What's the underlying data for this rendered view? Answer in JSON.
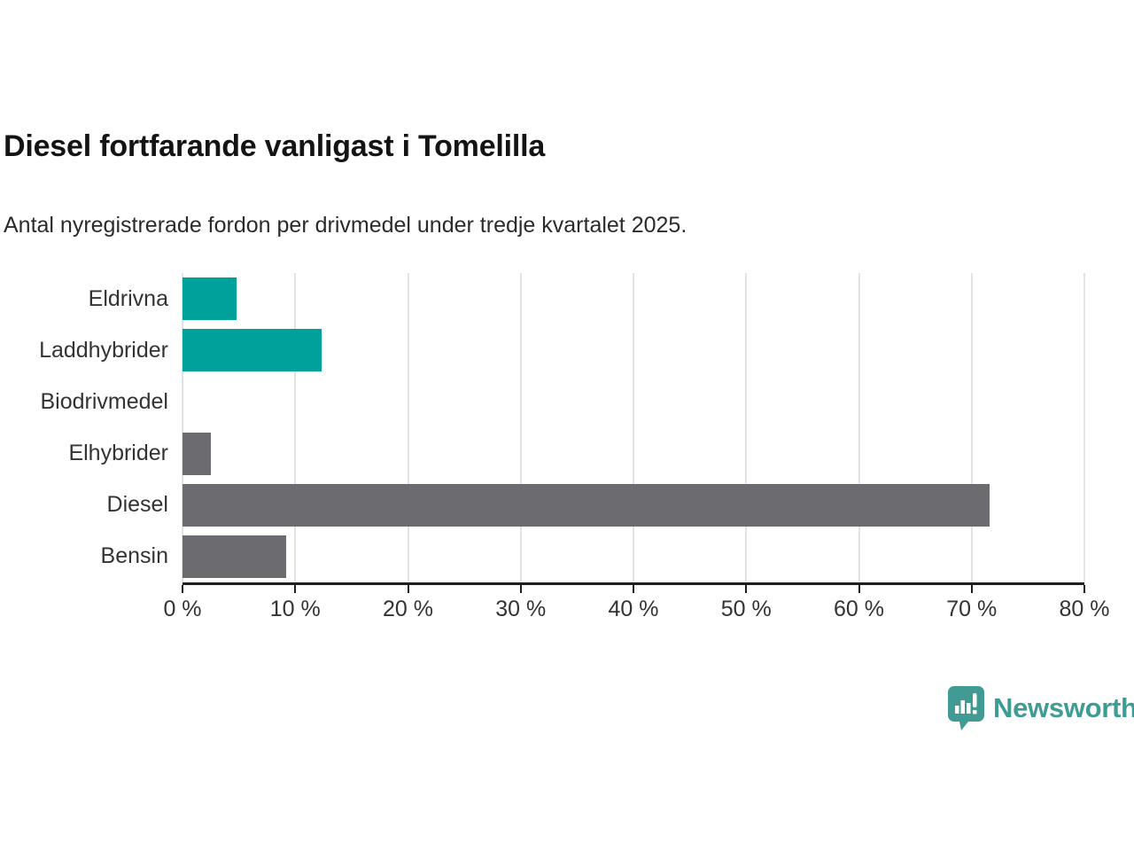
{
  "chart_data": {
    "type": "bar",
    "orientation": "horizontal",
    "title": "Diesel fortfarande vanligast i Tomelilla",
    "subtitle": "Antal nyregistrerade fordon per drivmedel under tredje kvartalet 2025.",
    "categories": [
      "Eldrivna",
      "Laddhybrider",
      "Biodrivmedel",
      "Elhybrider",
      "Diesel",
      "Bensin"
    ],
    "values": [
      4.8,
      12.3,
      0,
      2.5,
      71.6,
      9.2
    ],
    "unit": "%",
    "bar_colors": [
      "#00a19a",
      "#00a19a",
      "#00a19a",
      "#6c6b70",
      "#6c6b70",
      "#6c6b70"
    ],
    "xlim": [
      0,
      80
    ],
    "x_tick_values": [
      0,
      10,
      20,
      30,
      40,
      50,
      60,
      70,
      80
    ],
    "x_tick_labels": [
      "0 %",
      "10 %",
      "20 %",
      "30 %",
      "40 %",
      "50 %",
      "60 %",
      "70 %",
      "80 %"
    ],
    "grid": "vertical",
    "legend": "none",
    "colors": {
      "accent_teal": "#00a19a",
      "neutral_gray": "#6c6b70",
      "gridline": "#e3e3e3",
      "axis_line": "#1f1f1f",
      "title_text": "#141414",
      "label_text": "#333333"
    }
  },
  "branding": {
    "logo_text": "Newsworthy",
    "logo_icon": "speech-bubble-bar-chart-icon",
    "logo_color": "#3e9c95"
  }
}
